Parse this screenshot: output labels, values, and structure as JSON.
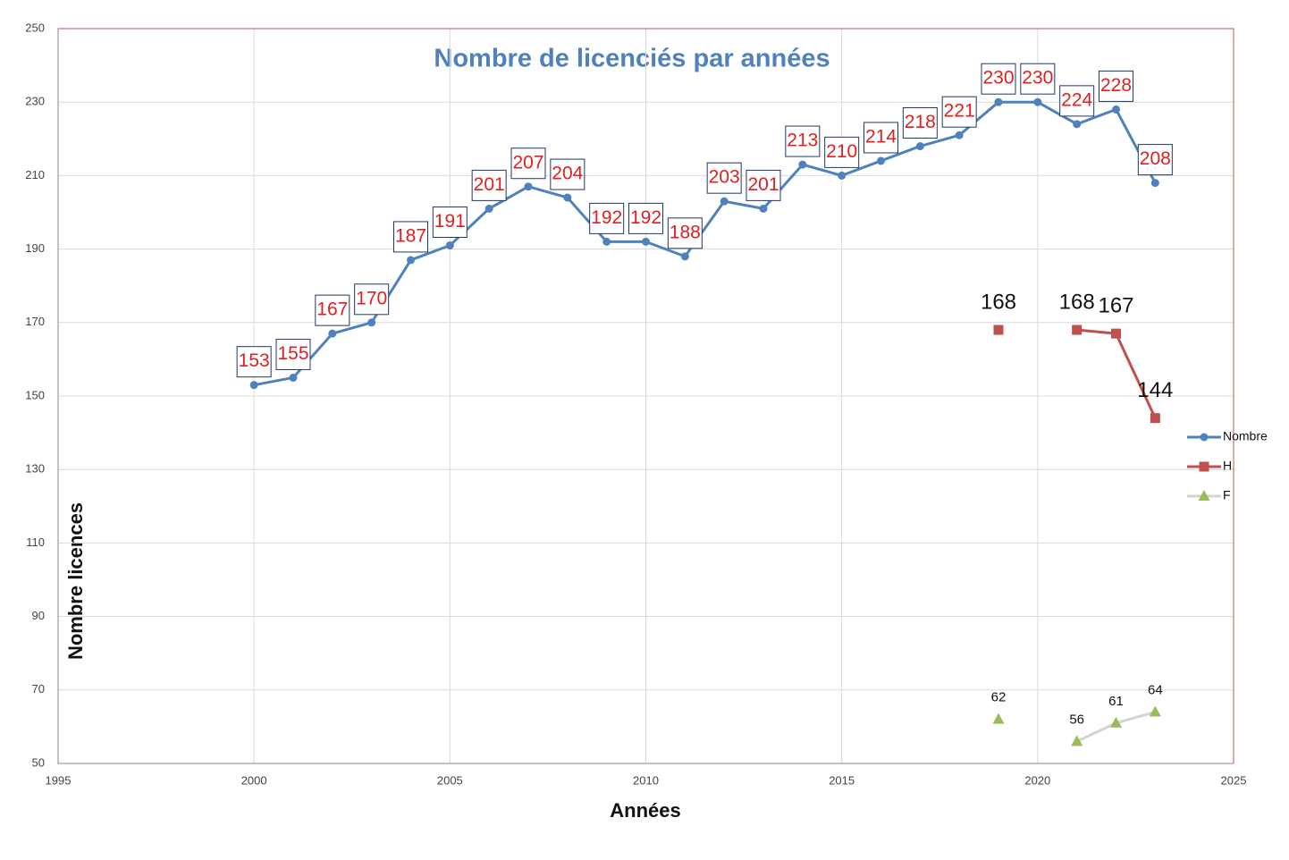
{
  "chart_data": {
    "type": "line",
    "title": "Nombre de licenciés par années",
    "x_label": "Années",
    "y_label": "Nombre licences",
    "x": [
      2000,
      2001,
      2002,
      2003,
      2004,
      2005,
      2006,
      2007,
      2008,
      2009,
      2010,
      2011,
      2012,
      2013,
      2014,
      2015,
      2016,
      2017,
      2018,
      2019,
      2020,
      2021,
      2022,
      2023
    ],
    "series": [
      {
        "name": "Nombre",
        "color": "#4f81bd",
        "line_color": "#4f81bd",
        "marker": "circle",
        "values": [
          153,
          155,
          167,
          170,
          187,
          191,
          201,
          207,
          204,
          192,
          192,
          188,
          203,
          201,
          213,
          210,
          214,
          218,
          221,
          230,
          230,
          224,
          228,
          208
        ]
      },
      {
        "name": "H",
        "color": "#c0504d",
        "line_color": "#c0504d",
        "marker": "square",
        "values": [
          null,
          null,
          null,
          null,
          null,
          null,
          null,
          null,
          null,
          null,
          null,
          null,
          null,
          null,
          null,
          null,
          null,
          null,
          null,
          168,
          null,
          168,
          167,
          144
        ]
      },
      {
        "name": "F",
        "color": "#9bbb59",
        "line_color": "#d3d3d3",
        "marker": "triangle",
        "values": [
          null,
          null,
          null,
          null,
          null,
          null,
          null,
          null,
          null,
          null,
          null,
          null,
          null,
          null,
          null,
          null,
          null,
          null,
          null,
          62,
          null,
          56,
          61,
          64
        ]
      }
    ],
    "xlim": [
      1995,
      2025
    ],
    "xticks": [
      1995,
      2000,
      2005,
      2010,
      2015,
      2020,
      2025
    ],
    "ylim": [
      50,
      250
    ],
    "yticks": [
      50,
      70,
      90,
      110,
      130,
      150,
      170,
      190,
      210,
      230,
      250
    ],
    "grid": true,
    "legend": "right"
  }
}
